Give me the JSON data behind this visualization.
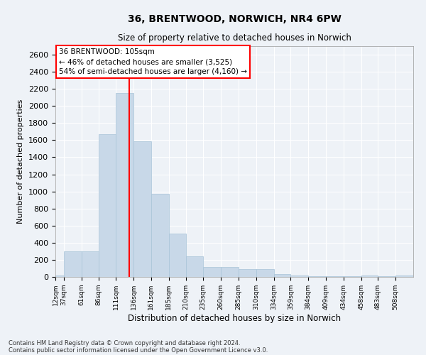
{
  "title": "36, BRENTWOOD, NORWICH, NR4 6PW",
  "subtitle": "Size of property relative to detached houses in Norwich",
  "xlabel": "Distribution of detached houses by size in Norwich",
  "ylabel": "Number of detached properties",
  "bar_color": "#c8d8e8",
  "bar_edgecolor": "#a8c4d8",
  "vline_color": "red",
  "vline_x": 105,
  "categories": [
    "12sqm",
    "37sqm",
    "61sqm",
    "86sqm",
    "111sqm",
    "136sqm",
    "161sqm",
    "185sqm",
    "210sqm",
    "235sqm",
    "260sqm",
    "285sqm",
    "310sqm",
    "334sqm",
    "359sqm",
    "384sqm",
    "409sqm",
    "434sqm",
    "458sqm",
    "483sqm",
    "508sqm"
  ],
  "bin_edges": [
    0,
    12,
    37,
    61,
    86,
    111,
    136,
    161,
    185,
    210,
    235,
    260,
    285,
    310,
    334,
    359,
    384,
    409,
    434,
    458,
    483,
    508
  ],
  "values": [
    20,
    295,
    295,
    1670,
    2150,
    1590,
    970,
    505,
    245,
    120,
    115,
    95,
    90,
    35,
    18,
    12,
    8,
    5,
    20,
    5,
    20
  ],
  "ylim": [
    0,
    2700
  ],
  "yticks": [
    0,
    200,
    400,
    600,
    800,
    1000,
    1200,
    1400,
    1600,
    1800,
    2000,
    2200,
    2400,
    2600
  ],
  "annotation_title": "36 BRENTWOOD: 105sqm",
  "annotation_line1": "← 46% of detached houses are smaller (3,525)",
  "annotation_line2": "54% of semi-detached houses are larger (4,160) →",
  "annotation_box_color": "white",
  "annotation_box_edgecolor": "red",
  "footer1": "Contains HM Land Registry data © Crown copyright and database right 2024.",
  "footer2": "Contains public sector information licensed under the Open Government Licence v3.0.",
  "background_color": "#eef2f7",
  "grid_color": "white"
}
